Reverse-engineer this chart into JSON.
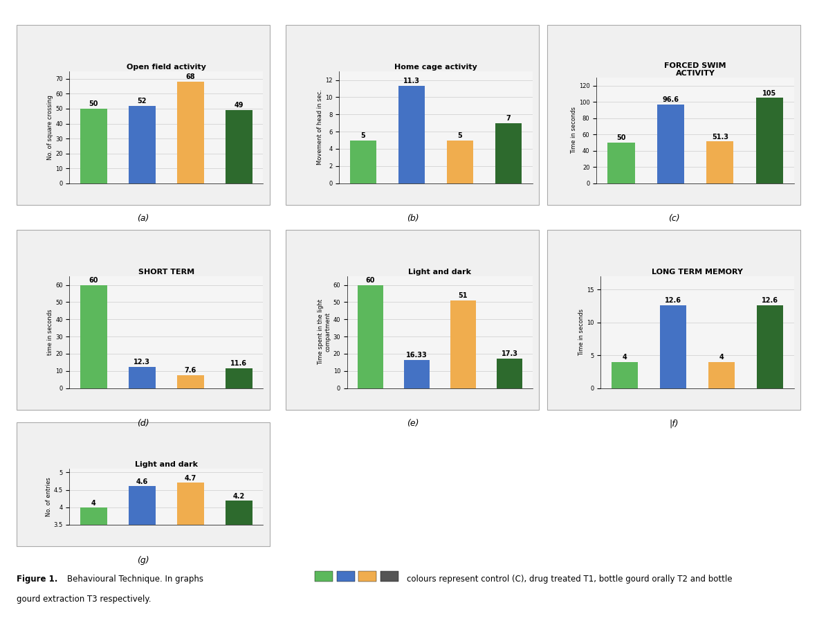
{
  "charts": [
    {
      "title": "Open field activity",
      "title_weight": "bold",
      "ylabel": "No. of square crossing",
      "values": [
        50,
        52,
        68,
        49
      ],
      "colors": [
        "#5cb85c",
        "#4472c4",
        "#f0ad4e",
        "#2d6a2d"
      ],
      "ylim": [
        0,
        75
      ],
      "yticks": [
        0,
        10,
        20,
        30,
        40,
        50,
        60,
        70
      ],
      "label": "(a)"
    },
    {
      "title": "Home cage activity",
      "title_weight": "bold",
      "ylabel": "Movement of head in sec.",
      "values": [
        5,
        11.3,
        5,
        7
      ],
      "colors": [
        "#5cb85c",
        "#4472c4",
        "#f0ad4e",
        "#2d6a2d"
      ],
      "ylim": [
        0,
        13
      ],
      "yticks": [
        0,
        2,
        4,
        6,
        8,
        10,
        12
      ],
      "label": "(b)"
    },
    {
      "title": "FORCED SWIM\nACTIVITY",
      "title_weight": "bold",
      "ylabel": "Time in seconds",
      "values": [
        50,
        96.6,
        51.3,
        105
      ],
      "colors": [
        "#5cb85c",
        "#4472c4",
        "#f0ad4e",
        "#2d6a2d"
      ],
      "ylim": [
        0,
        130
      ],
      "yticks": [
        0,
        20,
        40,
        60,
        80,
        100,
        120
      ],
      "label": "(c)"
    },
    {
      "title": "SHORT TERM",
      "title_weight": "bold",
      "ylabel": "time in seconds",
      "values": [
        60,
        12.3,
        7.6,
        11.6
      ],
      "colors": [
        "#5cb85c",
        "#4472c4",
        "#f0ad4e",
        "#2d6a2d"
      ],
      "ylim": [
        0,
        65
      ],
      "yticks": [
        0,
        10,
        20,
        30,
        40,
        50,
        60
      ],
      "label": "(d)"
    },
    {
      "title": "Light and dark",
      "title_weight": "bold",
      "ylabel": "Time spent in the light\ncompartment",
      "values": [
        60,
        16.33,
        51,
        17.3
      ],
      "colors": [
        "#5cb85c",
        "#4472c4",
        "#f0ad4e",
        "#2d6a2d"
      ],
      "ylim": [
        0,
        65
      ],
      "yticks": [
        0,
        10,
        20,
        30,
        40,
        50,
        60
      ],
      "label": "(e)"
    },
    {
      "title": "LONG TERM MEMORY",
      "title_weight": "bold",
      "ylabel": "Time in seconds",
      "values": [
        4,
        12.6,
        4,
        12.6
      ],
      "colors": [
        "#5cb85c",
        "#4472c4",
        "#f0ad4e",
        "#2d6a2d"
      ],
      "ylim": [
        0,
        17
      ],
      "yticks": [
        0,
        5,
        10,
        15
      ],
      "label": "|f)"
    },
    {
      "title": "Light and dark",
      "title_weight": "bold",
      "ylabel": "No. of entries",
      "values": [
        4,
        4.6,
        4.7,
        4.2
      ],
      "colors": [
        "#5cb85c",
        "#4472c4",
        "#f0ad4e",
        "#2d6a2d"
      ],
      "ylim": [
        3.5,
        5.1
      ],
      "yticks": [
        3.5,
        4.0,
        4.5,
        5.0
      ],
      "label": "(g)"
    }
  ],
  "legend_colors": [
    "#5cb85c",
    "#4472c4",
    "#f0ad4e",
    "#555555"
  ],
  "bg_color": "#f0f0f0",
  "panel_bg": "#ffffff",
  "bar_width": 0.55,
  "gridline_color": "#cccccc"
}
